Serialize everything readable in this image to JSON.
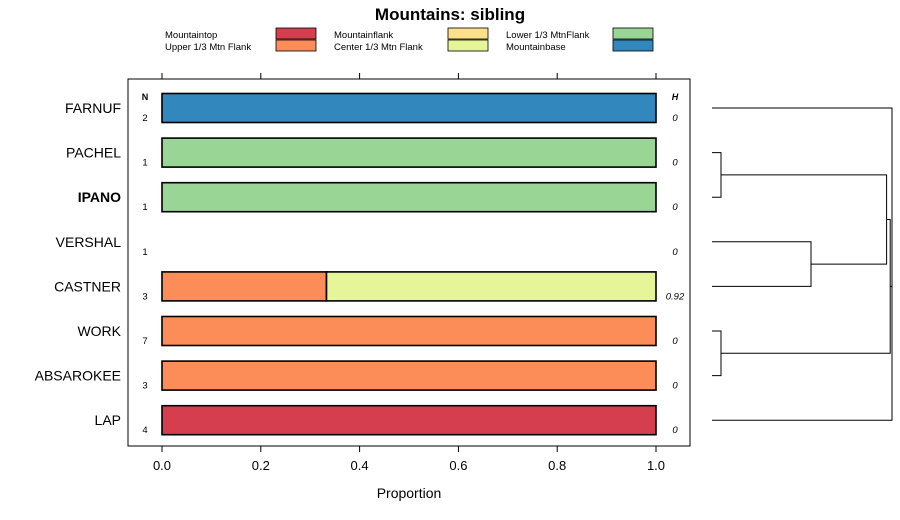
{
  "chart_data": {
    "type": "bar",
    "orientation": "horizontal",
    "stacked": true,
    "title": "Mountains: sibling",
    "xlabel": "Proportion",
    "xlim": [
      0,
      1
    ],
    "x_ticks": [
      "0.0",
      "0.2",
      "0.4",
      "0.6",
      "0.8",
      "1.0"
    ],
    "x_tick_values": [
      0,
      0.2,
      0.4,
      0.6,
      0.8,
      1.0
    ],
    "n_header": "N",
    "h_header": "H",
    "legend": [
      {
        "name": "Mountaintop",
        "color": "#D53E4F"
      },
      {
        "name": "Upper 1/3 Mtn Flank",
        "color": "#FC8D59"
      },
      {
        "name": "Mountainflank",
        "color": "#FEE08B"
      },
      {
        "name": "Center 1/3 Mtn Flank",
        "color": "#E6F598"
      },
      {
        "name": "Lower 1/3 MtnFlank",
        "color": "#99D594"
      },
      {
        "name": "Mountainbase",
        "color": "#3288BD"
      }
    ],
    "categories": [
      {
        "label": "FARNUF",
        "bold": false,
        "n": "2",
        "h": "0",
        "segments": [
          {
            "series": "Mountainbase",
            "value": 1.0
          }
        ]
      },
      {
        "label": "PACHEL",
        "bold": false,
        "n": "1",
        "h": "0",
        "segments": [
          {
            "series": "Lower 1/3 MtnFlank",
            "value": 1.0
          }
        ]
      },
      {
        "label": "IPANO",
        "bold": true,
        "n": "1",
        "h": "0",
        "segments": [
          {
            "series": "Lower 1/3 MtnFlank",
            "value": 1.0
          }
        ]
      },
      {
        "label": "VERSHAL",
        "bold": false,
        "n": "1",
        "h": "0",
        "segments": []
      },
      {
        "label": "CASTNER",
        "bold": false,
        "n": "3",
        "h": "0.92",
        "segments": [
          {
            "series": "Upper 1/3 Mtn Flank",
            "value": 0.333
          },
          {
            "series": "Center 1/3 Mtn Flank",
            "value": 0.667
          }
        ]
      },
      {
        "label": "WORK",
        "bold": false,
        "n": "7",
        "h": "0",
        "segments": [
          {
            "series": "Upper 1/3 Mtn Flank",
            "value": 1.0
          }
        ]
      },
      {
        "label": "ABSAROKEE",
        "bold": false,
        "n": "3",
        "h": "0",
        "segments": [
          {
            "series": "Upper 1/3 Mtn Flank",
            "value": 1.0
          }
        ]
      },
      {
        "label": "LAP",
        "bold": false,
        "n": "4",
        "h": "0",
        "segments": [
          {
            "series": "Mountaintop",
            "value": 1.0
          }
        ]
      }
    ],
    "dendrogram": {
      "merges": [
        {
          "id": "m1",
          "left": 1,
          "right": 2,
          "height": 0.05
        },
        {
          "id": "m2",
          "left": 5,
          "right": 6,
          "height": 0.05
        },
        {
          "id": "m3",
          "left": 3,
          "right": 4,
          "height": 0.55
        },
        {
          "id": "m4",
          "left": "m1",
          "right": "m3",
          "height": 0.97
        },
        {
          "id": "m5",
          "left": "m4",
          "right": "m2",
          "height": 0.99
        },
        {
          "id": "m6",
          "left": 0,
          "right": "m5",
          "height": 1.0
        },
        {
          "id": "m7",
          "left": "m6",
          "right": 7,
          "height": 1.0
        }
      ]
    }
  }
}
